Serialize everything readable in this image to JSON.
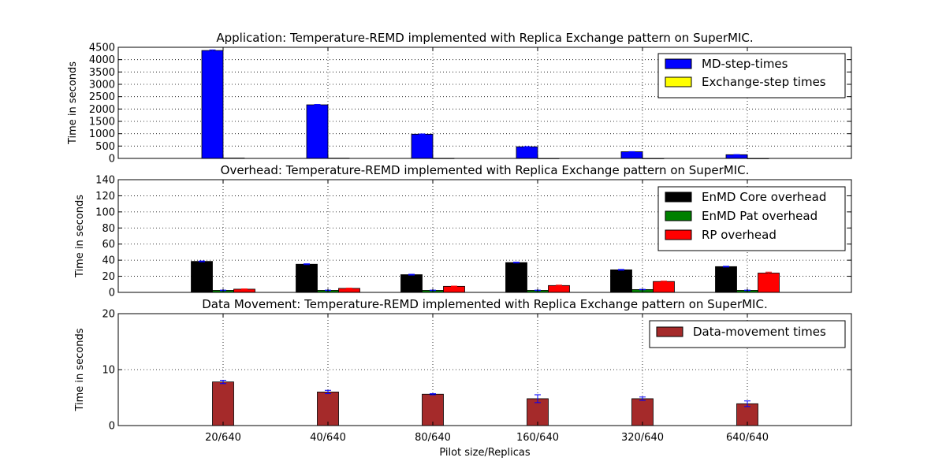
{
  "chart_data": [
    {
      "type": "bar",
      "title": "Application: Temperature-REMD implemented with Replica Exchange pattern on SuperMIC.",
      "ylabel": "Time in seconds",
      "xlabel": "",
      "categories": [
        "20/640",
        "40/640",
        "80/640",
        "160/640",
        "320/640",
        "640/640"
      ],
      "ylim": [
        0,
        4500
      ],
      "yticks": [
        0,
        500,
        1000,
        1500,
        2000,
        2500,
        3000,
        3500,
        4000,
        4500
      ],
      "grid": true,
      "legend_position": "top-right",
      "series": [
        {
          "name": "MD-step-times",
          "color": "#0000ff",
          "values": [
            4370,
            2170,
            980,
            470,
            270,
            150
          ],
          "errors": [
            25,
            15,
            10,
            8,
            5,
            4
          ]
        },
        {
          "name": "Exchange-step times",
          "color": "#ffff00",
          "values": [
            15,
            10,
            6,
            3,
            2,
            1
          ],
          "errors": [
            0,
            0,
            0,
            0,
            0,
            0
          ]
        }
      ]
    },
    {
      "type": "bar",
      "title": "Overhead: Temperature-REMD implemented with Replica Exchange pattern on SuperMIC.",
      "ylabel": "Time in seconds",
      "xlabel": "",
      "categories": [
        "20/640",
        "40/640",
        "80/640",
        "160/640",
        "320/640",
        "640/640"
      ],
      "ylim": [
        0,
        140
      ],
      "yticks": [
        0,
        20,
        40,
        60,
        80,
        100,
        120,
        140
      ],
      "grid": true,
      "legend_position": "top-right",
      "series": [
        {
          "name": "EnMD Core overhead",
          "color": "#000000",
          "values": [
            38.5,
            35,
            22,
            37,
            28,
            32
          ],
          "errors": [
            0.5,
            0.5,
            0.5,
            0.5,
            0.5,
            0.5
          ]
        },
        {
          "name": "EnMD Pat overhead",
          "color": "#008000",
          "values": [
            2.5,
            2.5,
            2.5,
            2.5,
            3.5,
            2.5
          ],
          "errors": [
            0.3,
            0.3,
            0.3,
            0.3,
            0.3,
            0.3
          ]
        },
        {
          "name": "RP overhead",
          "color": "#ff0000",
          "values": [
            4,
            5,
            7.5,
            8.5,
            13.5,
            24
          ],
          "errors": [
            0.3,
            0.3,
            0.3,
            0.5,
            0.5,
            1.2
          ]
        }
      ]
    },
    {
      "type": "bar",
      "title": "Data Movement: Temperature-REMD implemented with Replica Exchange pattern on SuperMIC.",
      "ylabel": "Time in seconds",
      "xlabel": "Pilot size/Replicas",
      "categories": [
        "20/640",
        "40/640",
        "80/640",
        "160/640",
        "320/640",
        "640/640"
      ],
      "ylim": [
        0,
        20
      ],
      "yticks": [
        0,
        10,
        20
      ],
      "grid": true,
      "legend_position": "top-right",
      "series": [
        {
          "name": "Data-movement times",
          "color": "#a52a2a",
          "values": [
            7.8,
            6.0,
            5.6,
            4.8,
            4.8,
            3.9
          ],
          "errors": [
            0.3,
            0.3,
            0.1,
            0.7,
            0.3,
            0.5
          ]
        }
      ]
    }
  ]
}
